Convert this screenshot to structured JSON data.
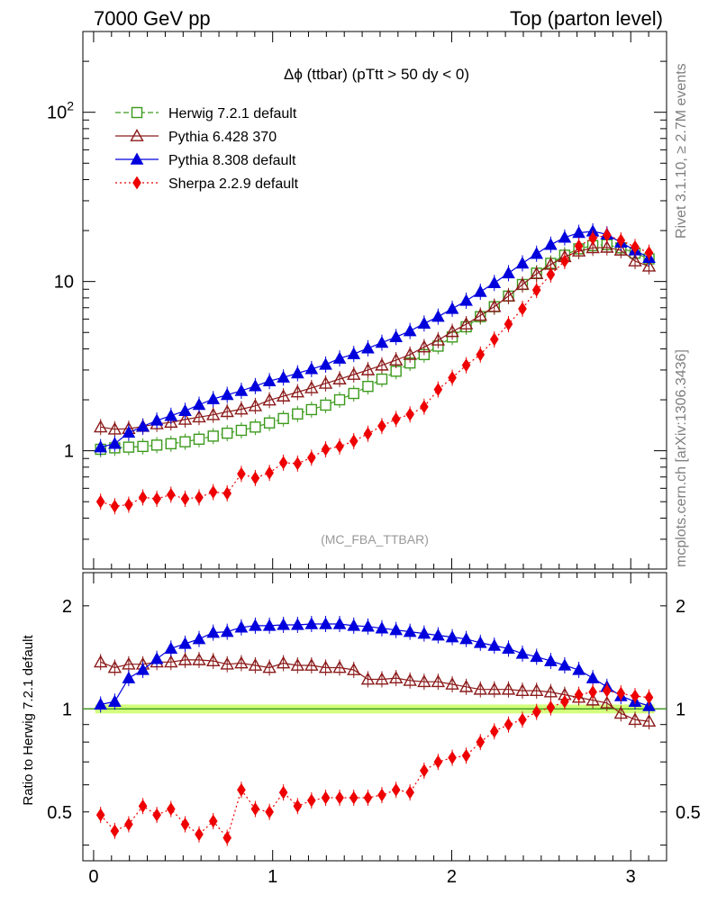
{
  "header": {
    "left": "7000 GeV pp",
    "right": "Top (parton level)"
  },
  "side_labels": {
    "rivet": "Rivet 3.1.10, ≥ 2.7M events",
    "site": "mcplots.cern.ch [arXiv:1306.3436]"
  },
  "chart_data": [
    {
      "type": "line",
      "title": "Δϕ (ttbar) (pTtt > 50 dy < 0)",
      "watermark": "(MC_FBA_TTBAR)",
      "xlabel": "",
      "ylabel": "",
      "yscale": "log",
      "xlim": [
        -0.06,
        3.2
      ],
      "ylim": [
        0.2,
        300
      ],
      "ytick_labels": [
        {
          "v": 1,
          "t": "1"
        },
        {
          "v": 10,
          "t": "10"
        },
        {
          "v": 100,
          "t": "10^2"
        }
      ],
      "legend_position": "top-left",
      "x": [
        0.039,
        0.118,
        0.196,
        0.275,
        0.353,
        0.432,
        0.511,
        0.589,
        0.668,
        0.746,
        0.825,
        0.903,
        0.982,
        1.06,
        1.139,
        1.217,
        1.296,
        1.374,
        1.453,
        1.532,
        1.61,
        1.689,
        1.767,
        1.846,
        1.924,
        2.003,
        2.081,
        2.16,
        2.238,
        2.317,
        2.395,
        2.474,
        2.553,
        2.631,
        2.71,
        2.788,
        2.867,
        2.945,
        3.024,
        3.102
      ],
      "series": [
        {
          "name": "Herwig 7.2.1 default",
          "color": "#3c9a1c",
          "marker": "open-square",
          "dash": "6,3",
          "values": [
            1.02,
            1.04,
            1.05,
            1.06,
            1.08,
            1.1,
            1.13,
            1.17,
            1.22,
            1.27,
            1.32,
            1.38,
            1.46,
            1.55,
            1.65,
            1.75,
            1.86,
            2.0,
            2.18,
            2.4,
            2.65,
            2.95,
            3.3,
            3.7,
            4.15,
            4.7,
            5.4,
            6.2,
            7.1,
            8.2,
            9.6,
            11.2,
            12.8,
            14.3,
            15.6,
            16.3,
            16.5,
            15.8,
            14.7,
            13.6
          ]
        },
        {
          "name": "Pythia 6.428 370",
          "color": "#8b1a1a",
          "marker": "open-triangle",
          "dash": "",
          "values": [
            1.38,
            1.34,
            1.35,
            1.39,
            1.44,
            1.47,
            1.53,
            1.58,
            1.63,
            1.7,
            1.76,
            1.84,
            1.99,
            2.1,
            2.22,
            2.35,
            2.5,
            2.65,
            2.82,
            3.0,
            3.2,
            3.43,
            3.7,
            4.1,
            4.5,
            5.05,
            5.6,
            6.3,
            7.1,
            8.2,
            9.6,
            11.1,
            12.6,
            14.0,
            15.1,
            15.8,
            15.9,
            15.3,
            13.2,
            12.3
          ]
        },
        {
          "name": "Pythia 8.308 default",
          "color": "#0000dd",
          "marker": "filled-triangle",
          "dash": "",
          "values": [
            1.05,
            1.1,
            1.28,
            1.39,
            1.51,
            1.61,
            1.72,
            1.87,
            2.02,
            2.14,
            2.26,
            2.41,
            2.58,
            2.71,
            2.87,
            3.04,
            3.23,
            3.51,
            3.73,
            4.03,
            4.35,
            4.7,
            5.1,
            5.65,
            6.2,
            6.9,
            7.7,
            8.7,
            9.8,
            11.2,
            12.8,
            14.6,
            16.5,
            18.2,
            19.4,
            19.8,
            19.0,
            17.0,
            15.3,
            13.8
          ]
        },
        {
          "name": "Sherpa 2.2.9 default",
          "color": "#ee0000",
          "marker": "filled-diamond",
          "dash": "2,3",
          "values": [
            0.5,
            0.47,
            0.48,
            0.53,
            0.52,
            0.55,
            0.52,
            0.53,
            0.57,
            0.56,
            0.73,
            0.69,
            0.74,
            0.85,
            0.84,
            0.91,
            1.02,
            1.06,
            1.14,
            1.26,
            1.4,
            1.54,
            1.64,
            1.82,
            2.3,
            2.7,
            3.2,
            3.7,
            4.55,
            5.6,
            6.9,
            8.9,
            11.0,
            13.2,
            16.2,
            18.0,
            18.8,
            17.5,
            16.0,
            14.8
          ]
        }
      ]
    },
    {
      "type": "line",
      "ylabel": "Ratio to Herwig 7.2.1 default",
      "yscale": "log",
      "xlim": [
        -0.06,
        3.2
      ],
      "ylim": [
        0.36,
        2.5
      ],
      "xtick_labels": [
        {
          "v": 0,
          "t": "0"
        },
        {
          "v": 1,
          "t": "1"
        },
        {
          "v": 2,
          "t": "2"
        },
        {
          "v": 3,
          "t": "3"
        }
      ],
      "ytick_labels": [
        {
          "v": 0.5,
          "t": "0.5"
        },
        {
          "v": 1,
          "t": "1"
        },
        {
          "v": 2,
          "t": "2"
        }
      ],
      "reference_line": 1,
      "reference_band": [
        0.97,
        1.03
      ],
      "band_color": "#ccff66",
      "x": [
        0.039,
        0.118,
        0.196,
        0.275,
        0.353,
        0.432,
        0.511,
        0.589,
        0.668,
        0.746,
        0.825,
        0.903,
        0.982,
        1.06,
        1.139,
        1.217,
        1.296,
        1.374,
        1.453,
        1.532,
        1.61,
        1.689,
        1.767,
        1.846,
        1.924,
        2.003,
        2.081,
        2.16,
        2.238,
        2.317,
        2.395,
        2.474,
        2.553,
        2.631,
        2.71,
        2.788,
        2.867,
        2.945,
        3.024,
        3.102
      ],
      "series": [
        {
          "name": "Pythia 6.428 370",
          "color": "#8b1a1a",
          "marker": "open-triangle",
          "dash": "",
          "values": [
            1.37,
            1.32,
            1.35,
            1.35,
            1.37,
            1.37,
            1.39,
            1.39,
            1.38,
            1.35,
            1.36,
            1.34,
            1.32,
            1.36,
            1.34,
            1.34,
            1.32,
            1.32,
            1.3,
            1.22,
            1.22,
            1.23,
            1.21,
            1.2,
            1.2,
            1.18,
            1.16,
            1.14,
            1.14,
            1.14,
            1.13,
            1.13,
            1.12,
            1.1,
            1.08,
            1.06,
            1.04,
            0.97,
            0.93,
            0.92
          ]
        },
        {
          "name": "Pythia 8.308 default",
          "color": "#0000dd",
          "marker": "filled-triangle",
          "dash": "",
          "values": [
            1.03,
            1.05,
            1.23,
            1.3,
            1.4,
            1.5,
            1.55,
            1.6,
            1.67,
            1.68,
            1.73,
            1.75,
            1.75,
            1.76,
            1.76,
            1.77,
            1.77,
            1.77,
            1.75,
            1.74,
            1.72,
            1.7,
            1.68,
            1.66,
            1.64,
            1.62,
            1.6,
            1.56,
            1.53,
            1.5,
            1.45,
            1.42,
            1.38,
            1.34,
            1.3,
            1.23,
            1.16,
            1.09,
            1.05,
            1.02
          ]
        },
        {
          "name": "Sherpa 2.2.9 default",
          "color": "#ee0000",
          "marker": "filled-diamond",
          "dash": "2,3",
          "values": [
            0.49,
            0.44,
            0.46,
            0.52,
            0.49,
            0.51,
            0.46,
            0.43,
            0.47,
            0.42,
            0.58,
            0.51,
            0.5,
            0.57,
            0.52,
            0.54,
            0.55,
            0.55,
            0.55,
            0.55,
            0.56,
            0.58,
            0.57,
            0.66,
            0.7,
            0.72,
            0.73,
            0.8,
            0.86,
            0.9,
            0.93,
            0.98,
            1.01,
            1.05,
            1.1,
            1.12,
            1.13,
            1.11,
            1.09,
            1.08
          ]
        }
      ]
    }
  ]
}
